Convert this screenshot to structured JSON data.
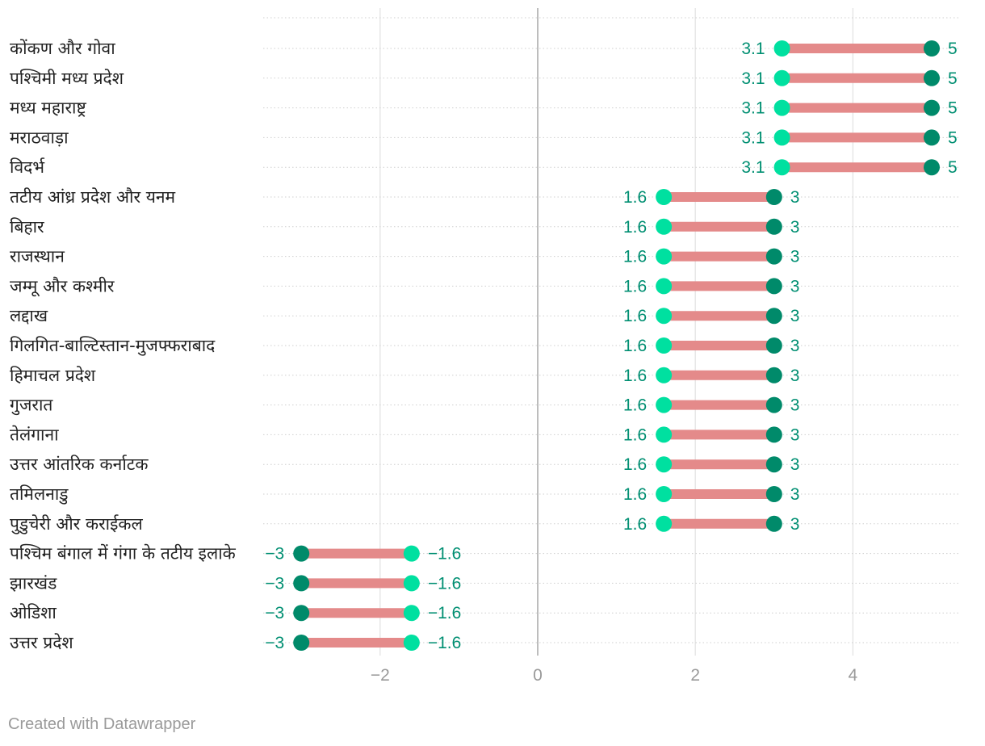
{
  "chart_data": {
    "type": "range-dot",
    "categories": [
      "कोंकण और गोवा",
      "पश्चिमी मध्य प्रदेश",
      "मध्य महाराष्ट्र",
      "मराठवाड़ा",
      "विदर्भ",
      "तटीय आंध्र प्रदेश और यनम",
      "बिहार",
      "राजस्थान",
      "जम्मू और कश्मीर",
      "लद्दाख",
      "गिलगित-बाल्टिस्तान-मुजफ्फराबाद",
      "हिमाचल प्रदेश",
      "गुजरात",
      "तेलंगाना",
      "उत्तर आंतरिक कर्नाटक",
      "तमिलनाडु",
      "पुडुचेरी और कराईकल",
      "पश्चिम बंगाल में गंगा के तटीय इलाके",
      "झारखंड",
      "ओडिशा",
      "उत्तर प्रदेश"
    ],
    "series": [
      {
        "name": "light",
        "color": "#00e0a0",
        "values": [
          3.1,
          3.1,
          3.1,
          3.1,
          3.1,
          1.6,
          1.6,
          1.6,
          1.6,
          1.6,
          1.6,
          1.6,
          1.6,
          1.6,
          1.6,
          1.6,
          1.6,
          -1.6,
          -1.6,
          -1.6,
          -1.6
        ]
      },
      {
        "name": "dark",
        "color": "#008a6a",
        "values": [
          5,
          5,
          5,
          5,
          5,
          3,
          3,
          3,
          3,
          3,
          3,
          3,
          3,
          3,
          3,
          3,
          3,
          -3,
          -3,
          -3,
          -3
        ]
      }
    ],
    "value_labels": {
      "light": [
        "3.1",
        "3.1",
        "3.1",
        "3.1",
        "3.1",
        "1.6",
        "1.6",
        "1.6",
        "1.6",
        "1.6",
        "1.6",
        "1.6",
        "1.6",
        "1.6",
        "1.6",
        "1.6",
        "1.6",
        "−1.6",
        "−1.6",
        "−1.6",
        "−1.6"
      ],
      "dark": [
        "5",
        "5",
        "5",
        "5",
        "5",
        "3",
        "3",
        "3",
        "3",
        "3",
        "3",
        "3",
        "3",
        "3",
        "3",
        "3",
        "3",
        "−3",
        "−3",
        "−3",
        "−3"
      ]
    },
    "connector_color": "#e48a8a",
    "text_color": "#008f72",
    "x_ticks": [
      -2,
      0,
      2,
      4
    ],
    "x_tick_labels": [
      "−2",
      "0",
      "2",
      "4"
    ],
    "xlim": [
      -3.5,
      5.35
    ],
    "title": "",
    "xlabel": "",
    "ylabel": ""
  },
  "footer": {
    "credit": "Created with Datawrapper"
  }
}
